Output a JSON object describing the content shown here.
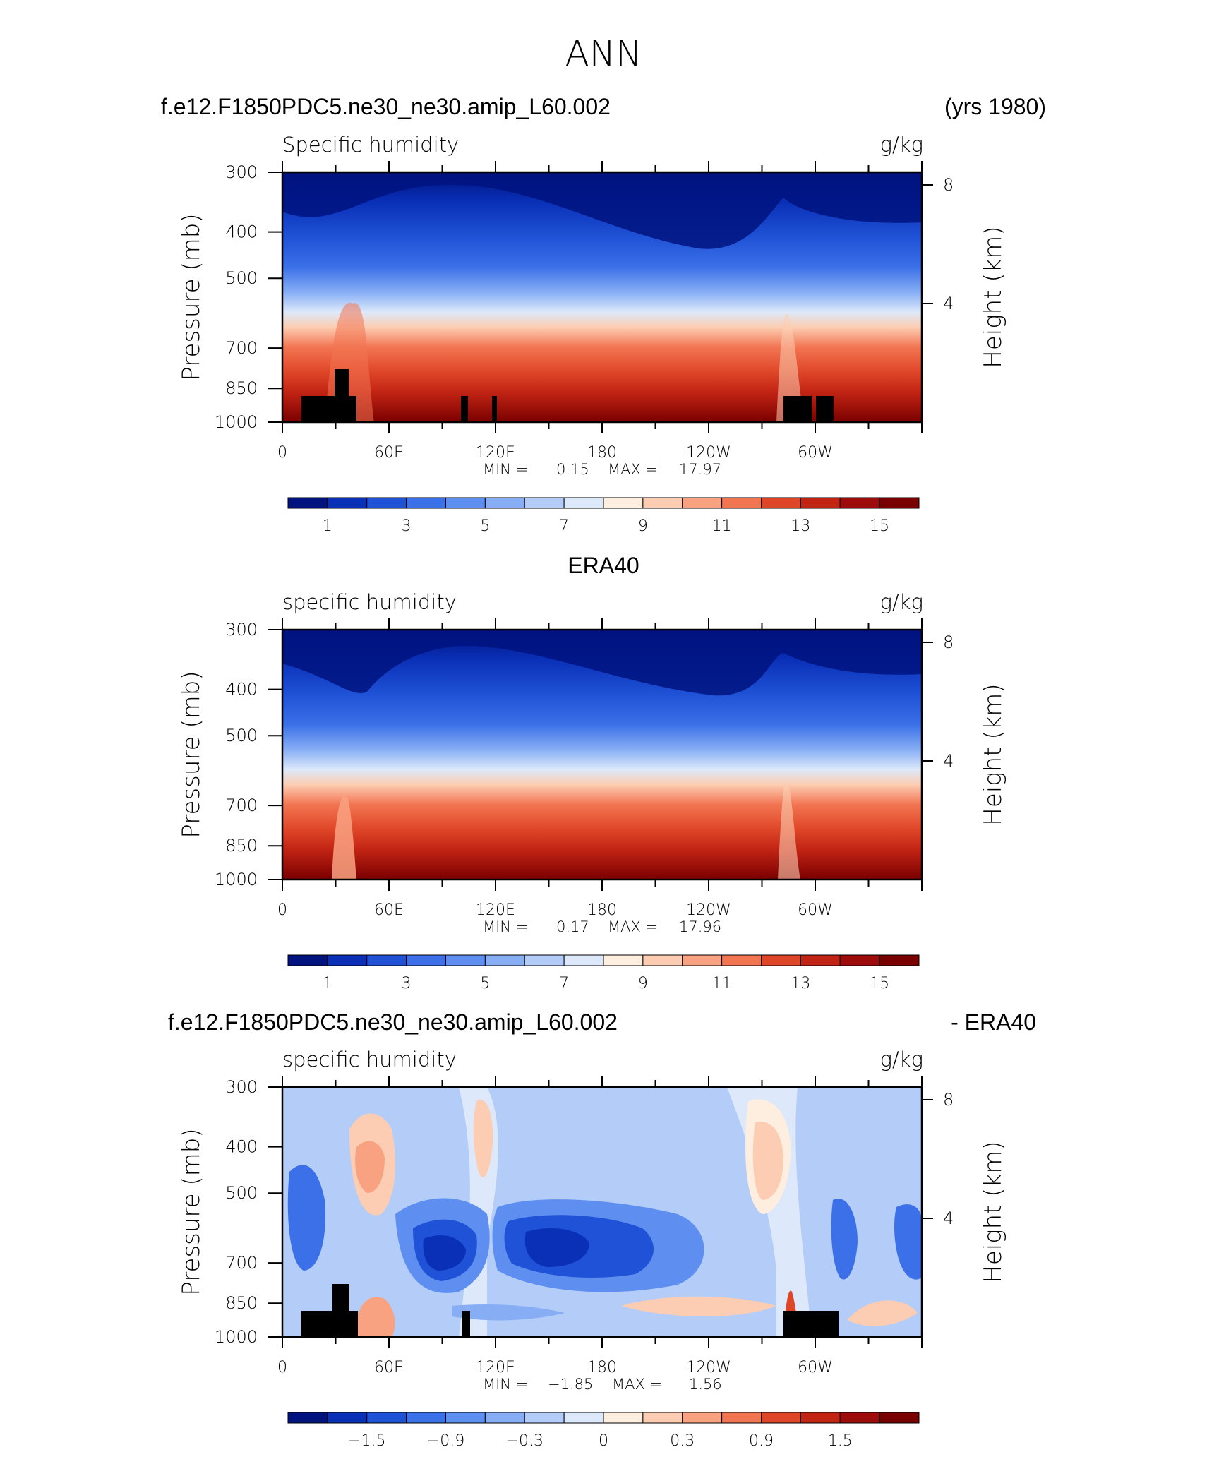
{
  "figure": {
    "title": "ANN"
  },
  "colorbar_palette": [
    "#00137f",
    "#0a30b8",
    "#1f52d6",
    "#3b70e8",
    "#5e8ef0",
    "#87aef5",
    "#b3ccf8",
    "#dde9fa",
    "#fdeedf",
    "#fccdb2",
    "#f9a281",
    "#f27552",
    "#df4628",
    "#c22414",
    "#9d0b0b",
    "#7a0000"
  ],
  "chart_data": [
    {
      "id": "model",
      "type": "heatmap",
      "header_left": "f.e12.F1850PDC5.ne30_ne30.amip_L60.002",
      "header_right": "(yrs 1980)",
      "title": "Specific humidity",
      "units": "g/kg",
      "xlabel": "",
      "ylabel": "Pressure (mb)",
      "ylabel_right": "Height (km)",
      "x_ticks": [
        "0",
        "60E",
        "120E",
        "180",
        "120W",
        "60W"
      ],
      "y_ticks": [
        "300",
        "400",
        "500",
        "700",
        "850",
        "1000"
      ],
      "y_ticks_right": [
        "8",
        "4"
      ],
      "xlim": [
        0,
        360
      ],
      "ylim": [
        1000,
        300
      ],
      "stats": {
        "min_label": "MIN =",
        "min": "0.15",
        "max_label": "MAX =",
        "max": "17.97"
      },
      "colorbar_labels": [
        "1",
        "3",
        "5",
        "7",
        "9",
        "11",
        "13",
        "15"
      ],
      "colorbar_levels": [
        0.5,
        1,
        2,
        3,
        4,
        5,
        6,
        7,
        8,
        9,
        10,
        11,
        12,
        13,
        14,
        15,
        16
      ],
      "field": "humidity_model"
    },
    {
      "id": "obs",
      "type": "heatmap",
      "header_center": "ERA40",
      "title": "specific humidity",
      "units": "g/kg",
      "ylabel": "Pressure (mb)",
      "ylabel_right": "Height (km)",
      "x_ticks": [
        "0",
        "60E",
        "120E",
        "180",
        "120W",
        "60W"
      ],
      "y_ticks": [
        "300",
        "400",
        "500",
        "700",
        "850",
        "1000"
      ],
      "y_ticks_right": [
        "8",
        "4"
      ],
      "xlim": [
        0,
        360
      ],
      "ylim": [
        1000,
        300
      ],
      "stats": {
        "min_label": "MIN =",
        "min": "0.17",
        "max_label": "MAX =",
        "max": "17.96"
      },
      "colorbar_labels": [
        "1",
        "3",
        "5",
        "7",
        "9",
        "11",
        "13",
        "15"
      ],
      "colorbar_levels": [
        0.5,
        1,
        2,
        3,
        4,
        5,
        6,
        7,
        8,
        9,
        10,
        11,
        12,
        13,
        14,
        15,
        16
      ],
      "field": "humidity_obs"
    },
    {
      "id": "diff",
      "type": "heatmap",
      "header_left": "f.e12.F1850PDC5.ne30_ne30.amip_L60.002",
      "header_right": "- ERA40",
      "title": "specific humidity",
      "units": "g/kg",
      "ylabel": "Pressure (mb)",
      "ylabel_right": "Height (km)",
      "x_ticks": [
        "0",
        "60E",
        "120E",
        "180",
        "120W",
        "60W"
      ],
      "y_ticks": [
        "300",
        "400",
        "500",
        "700",
        "850",
        "1000"
      ],
      "y_ticks_right": [
        "8",
        "4"
      ],
      "xlim": [
        0,
        360
      ],
      "ylim": [
        1000,
        300
      ],
      "stats": {
        "min_label": "MIN =",
        "min": "−1.85",
        "max_label": "MAX =",
        "max": "1.56"
      },
      "colorbar_labels": [
        "−1.5",
        "−0.9",
        "−0.3",
        "0",
        "0.3",
        "0.9",
        "1.5"
      ],
      "colorbar_levels": [
        -2.1,
        -1.8,
        -1.5,
        -1.2,
        -0.9,
        -0.6,
        -0.3,
        0,
        0.3,
        0.6,
        0.9,
        1.2,
        1.5,
        1.8
      ],
      "field": "humidity_diff"
    }
  ]
}
